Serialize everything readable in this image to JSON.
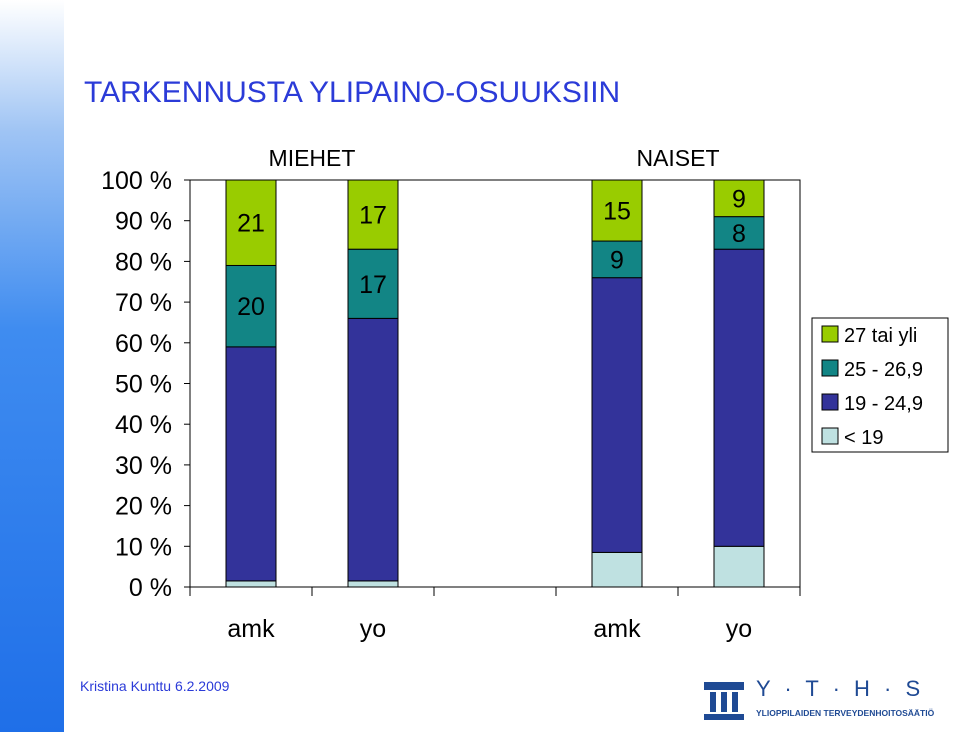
{
  "slide": {
    "title": "TARKENNUSTA YLIPAINO-OSUUKSIIN",
    "author_date": "Kristina Kunttu 6.2.2009",
    "logo_letters": "Y · T · H · S",
    "logo_subtitle": "YLIOPPILAIDEN TERVEYDENHOITOSÄÄTIÖ"
  },
  "chart_data": {
    "type": "bar",
    "stacked": "percent",
    "groups": [
      "MIEHET",
      "NAISET"
    ],
    "categories": [
      "amk",
      "yo",
      "amk",
      "yo"
    ],
    "group_of_category": [
      0,
      0,
      1,
      1
    ],
    "series": [
      {
        "name": "< 19",
        "color": "#bfe1e1",
        "values": [
          1.5,
          1.5,
          8.5,
          10
        ]
      },
      {
        "name": "19 - 24,9",
        "color": "#33339a",
        "values": [
          57.5,
          64.5,
          67.5,
          73
        ]
      },
      {
        "name": "25 - 26,9",
        "color": "#128585",
        "values": [
          20,
          17,
          9,
          8
        ]
      },
      {
        "name": "27 tai yli",
        "color": "#99cc00",
        "values": [
          21,
          17,
          15,
          9
        ]
      }
    ],
    "data_labels": [
      {
        "series": 2,
        "category": 0,
        "text": "20"
      },
      {
        "series": 3,
        "category": 0,
        "text": "21"
      },
      {
        "series": 2,
        "category": 1,
        "text": "17"
      },
      {
        "series": 3,
        "category": 1,
        "text": "17"
      },
      {
        "series": 2,
        "category": 2,
        "text": "9"
      },
      {
        "series": 3,
        "category": 2,
        "text": "15"
      },
      {
        "series": 2,
        "category": 3,
        "text": "8"
      },
      {
        "series": 3,
        "category": 3,
        "text": "9"
      }
    ],
    "yticks": [
      "0 %",
      "10 %",
      "20 %",
      "30 %",
      "40 %",
      "50 %",
      "60 %",
      "70 %",
      "80 %",
      "90 %",
      "100 %"
    ],
    "ylim": [
      0,
      100
    ],
    "legend_position": "right",
    "grid": false
  }
}
